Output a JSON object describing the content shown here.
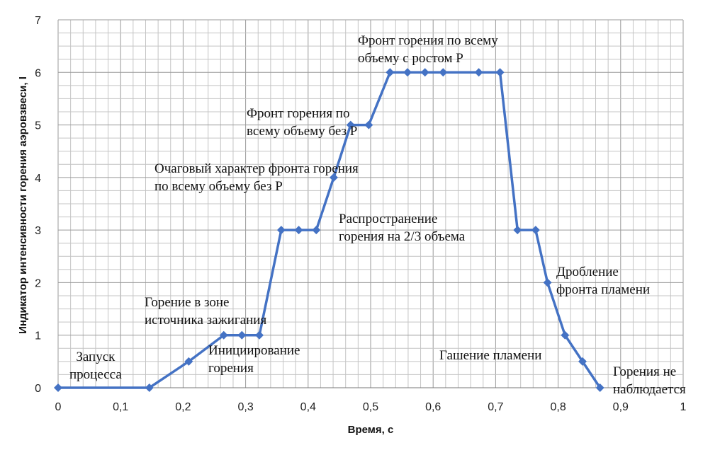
{
  "chart_data": {
    "type": "line",
    "title": "",
    "xlabel": "Время, с",
    "ylabel": "Индикатор интенсивности горения аэровзвеси, I",
    "xlim": [
      0,
      1
    ],
    "ylim": [
      0,
      7
    ],
    "grid": true,
    "x_ticks": [
      "0",
      "0,1",
      "0,2",
      "0,3",
      "0,4",
      "0,5",
      "0,6",
      "0,7",
      "0,8",
      "0,9",
      "1"
    ],
    "y_ticks": [
      "0",
      "1",
      "2",
      "3",
      "4",
      "5",
      "6",
      "7"
    ],
    "series": [
      {
        "name": "I",
        "color": "#4472c4",
        "x": [
          0,
          0.146,
          0.209,
          0.265,
          0.294,
          0.322,
          0.357,
          0.385,
          0.413,
          0.441,
          0.468,
          0.497,
          0.531,
          0.559,
          0.587,
          0.616,
          0.673,
          0.707,
          0.735,
          0.764,
          0.783,
          0.811,
          0.839,
          0.867
        ],
        "y": [
          0,
          0,
          0.5,
          1,
          1,
          1,
          3,
          3,
          3,
          4,
          5,
          5,
          6,
          6,
          6,
          6,
          6,
          6,
          3,
          3,
          2,
          1,
          0.5,
          0
        ]
      }
    ],
    "annotations": [
      "Запуск\nпроцесса",
      "Горение в зоне\nисточника зажигания",
      "Инициирование\nгорения",
      "Очаговый характер фронта горения\nпо всему объему без P",
      "Фронт горения по\nвсему объему без P",
      "Фронт горения по всему\nобъему с ростом P",
      "Распространение\nгорения на 2/3 объема",
      "Дробление\nфронта пламени",
      "Гашение пламени",
      "Горения не\nнаблюдается"
    ]
  }
}
